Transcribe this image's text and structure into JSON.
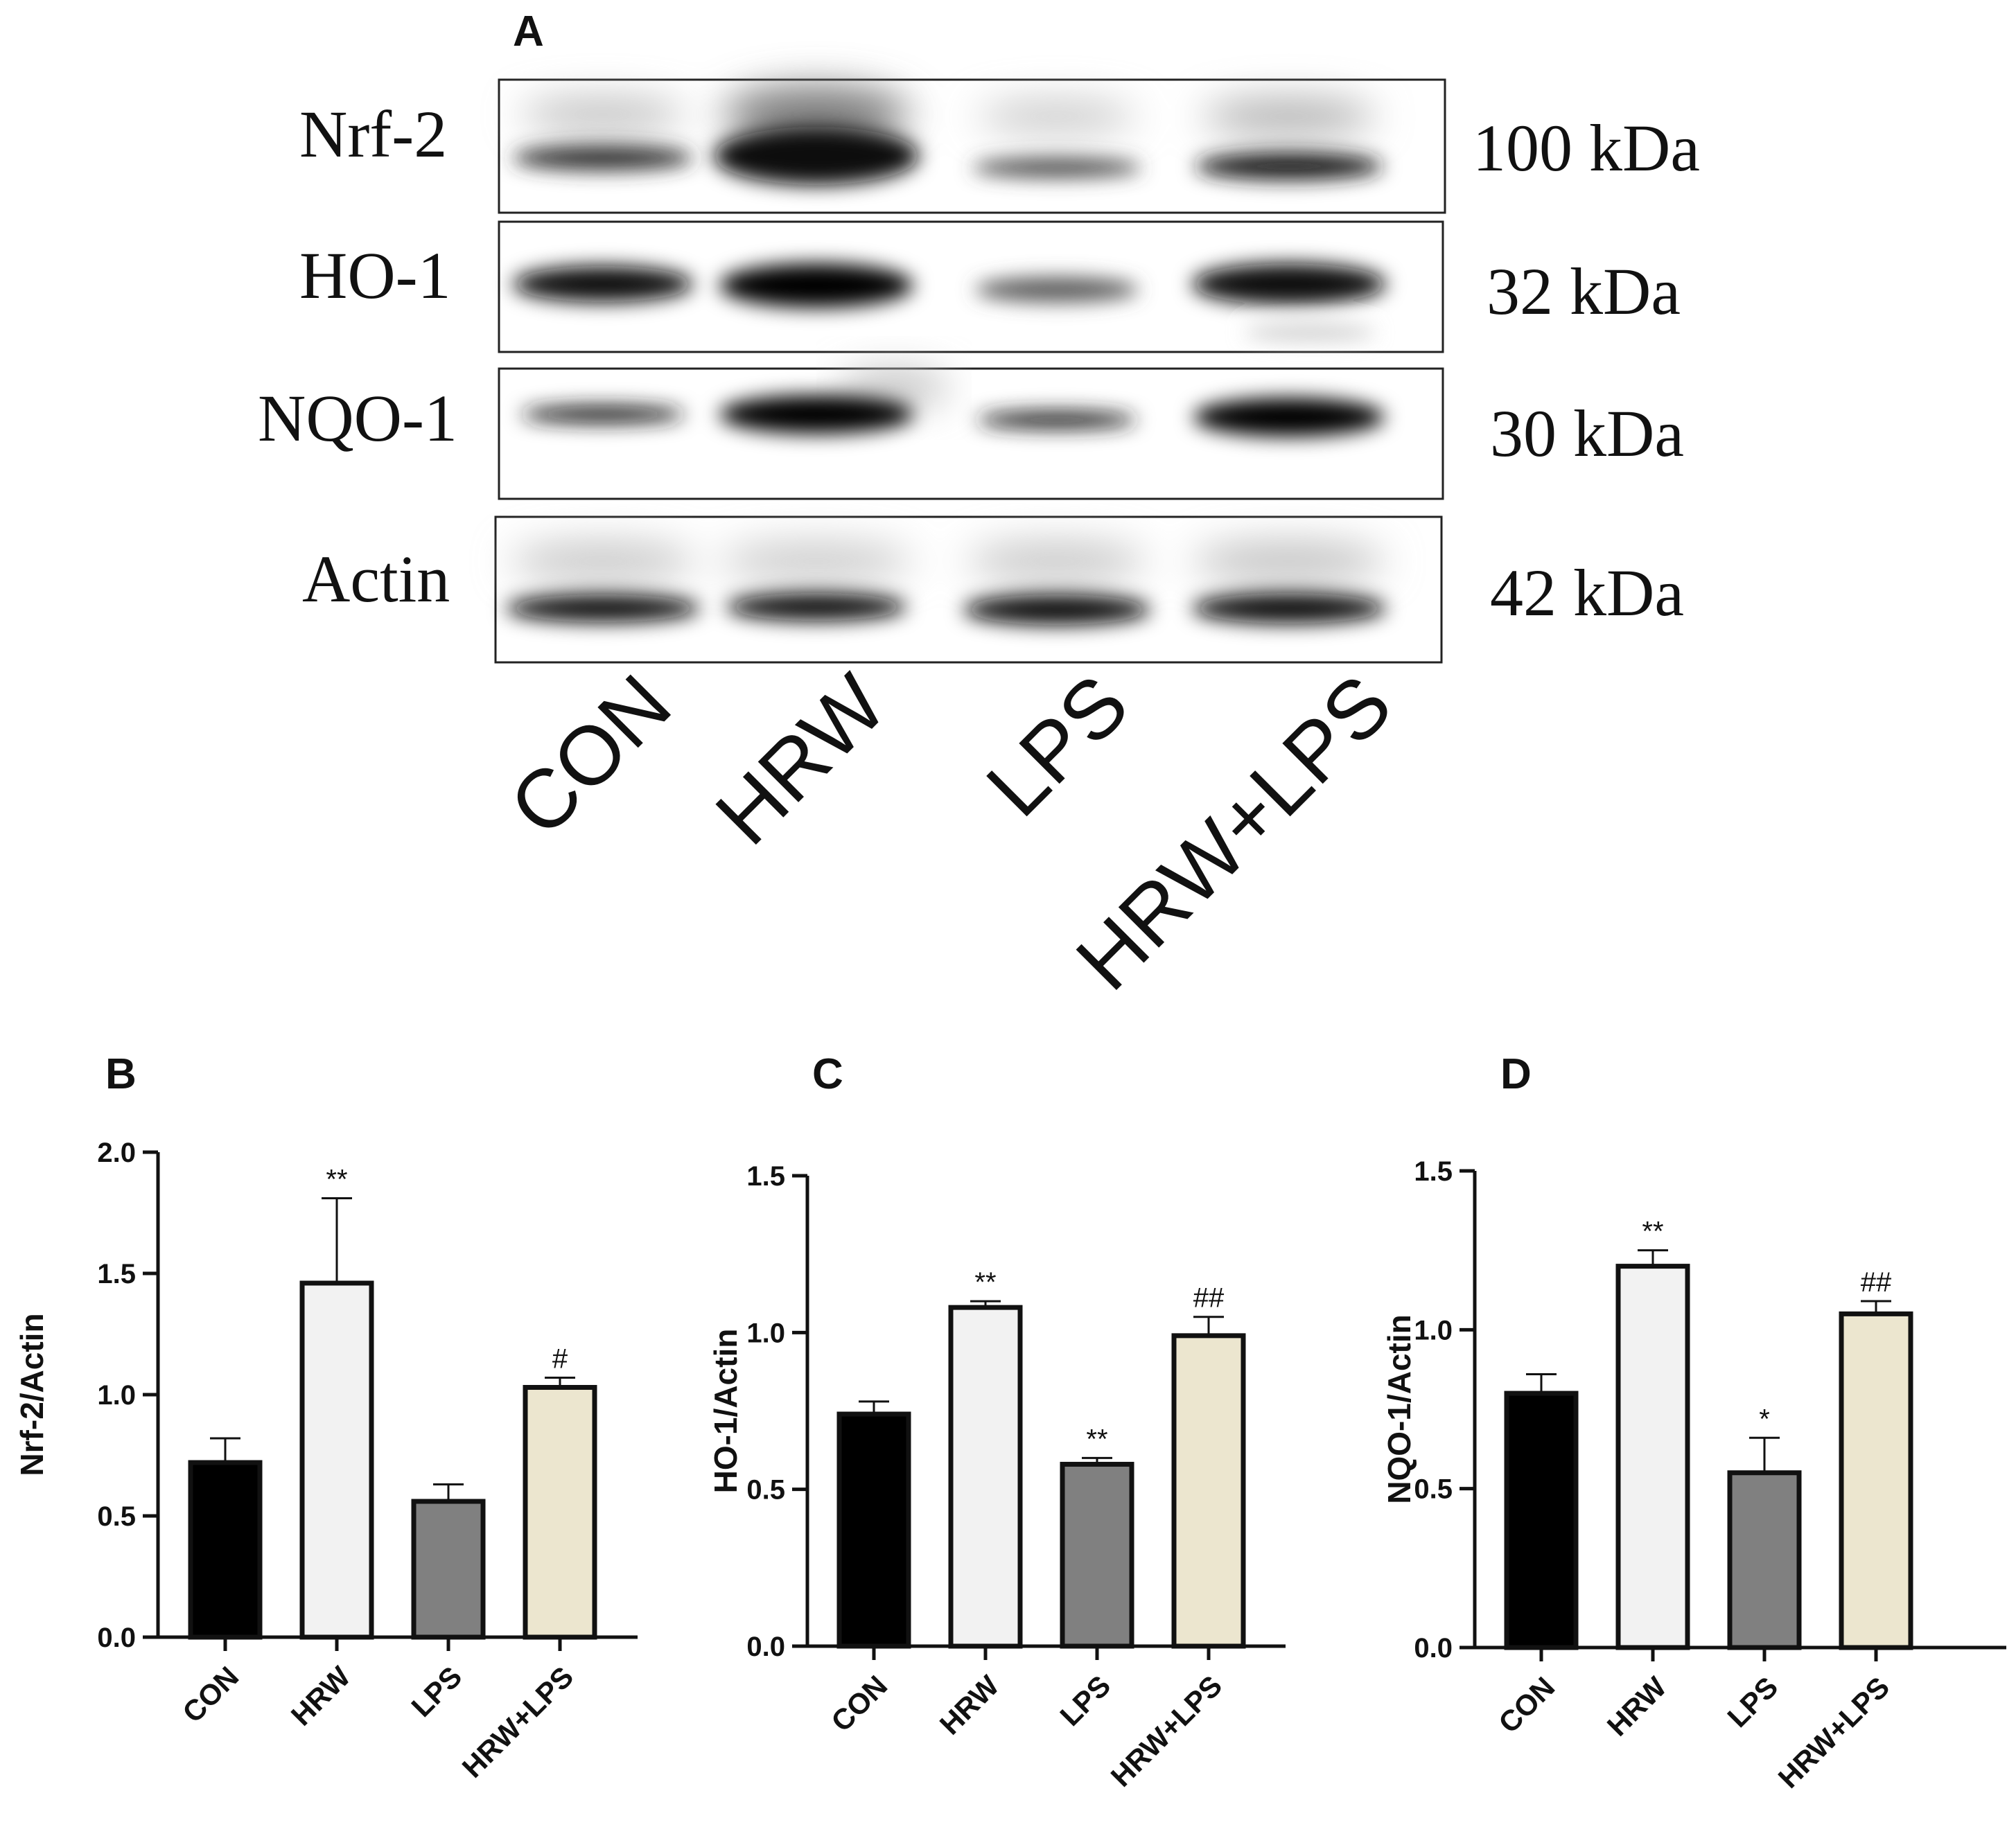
{
  "panel_a": {
    "letter": "A",
    "proteins": [
      {
        "name": "Nrf-2",
        "size": "100 kDa"
      },
      {
        "name": "HO-1",
        "size": "32 kDa"
      },
      {
        "name": "NQO-1",
        "size": "30 kDa"
      },
      {
        "name": "Actin",
        "size": "42 kDa"
      }
    ],
    "lanes": [
      "CON",
      "HRW",
      "LPS",
      "HRW+LPS"
    ]
  },
  "chart_data": [
    {
      "type": "bar",
      "panel": "B",
      "categories": [
        "CON",
        "HRW",
        "LPS",
        "HRW+LPS"
      ],
      "values": [
        0.72,
        1.46,
        0.56,
        1.03
      ],
      "errors": [
        0.1,
        0.35,
        0.07,
        0.04
      ],
      "significance": [
        "",
        "**",
        "",
        "#"
      ],
      "ylabel": "Nrf-2/Actin",
      "ylim": [
        0,
        2.0
      ],
      "yticks": [
        "0.0",
        "0.5",
        "1.0",
        "1.5",
        "2.0"
      ],
      "ytick_values": [
        0,
        0.5,
        1.0,
        1.5,
        2.0
      ],
      "colors": [
        "#000000",
        "#f2f2f2",
        "#808080",
        "#ece6cf"
      ]
    },
    {
      "type": "bar",
      "panel": "C",
      "categories": [
        "CON",
        "HRW",
        "LPS",
        "HRW+LPS"
      ],
      "values": [
        0.74,
        1.08,
        0.58,
        0.99
      ],
      "errors": [
        0.04,
        0.02,
        0.02,
        0.06
      ],
      "significance": [
        "",
        "**",
        "**",
        "##"
      ],
      "ylabel": "HO-1/Actin",
      "ylim": [
        0,
        1.5
      ],
      "yticks": [
        "0.0",
        "0.5",
        "1.0",
        "1.5"
      ],
      "ytick_values": [
        0,
        0.5,
        1.0,
        1.5
      ],
      "colors": [
        "#000000",
        "#f2f2f2",
        "#808080",
        "#ece6cf"
      ]
    },
    {
      "type": "bar",
      "panel": "D",
      "categories": [
        "CON",
        "HRW",
        "LPS",
        "HRW+LPS"
      ],
      "values": [
        0.8,
        1.2,
        0.55,
        1.05
      ],
      "errors": [
        0.06,
        0.05,
        0.11,
        0.04
      ],
      "significance": [
        "",
        "**",
        "*",
        "##"
      ],
      "ylabel": "NQO-1/Actin",
      "ylim": [
        0,
        1.5
      ],
      "yticks": [
        "0.0",
        "0.5",
        "1.0",
        "1.5"
      ],
      "ytick_values": [
        0,
        0.5,
        1.0,
        1.5
      ],
      "colors": [
        "#000000",
        "#f2f2f2",
        "#808080",
        "#ece6cf"
      ]
    }
  ]
}
